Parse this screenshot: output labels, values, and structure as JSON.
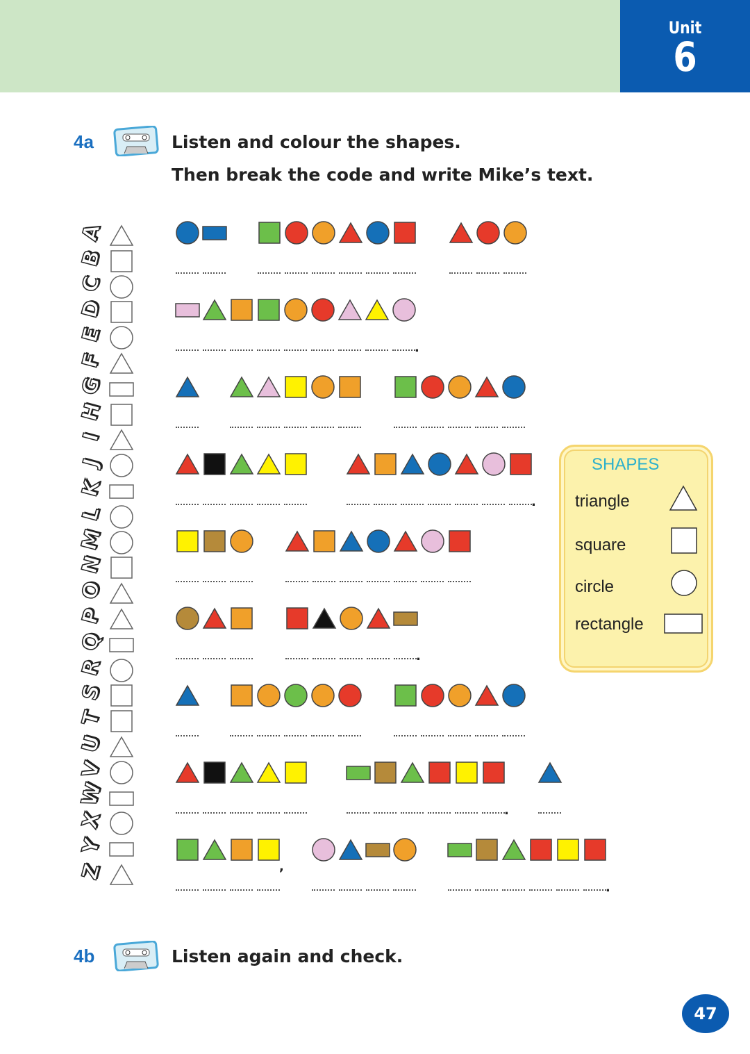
{
  "header": {
    "unit_label": "Unit",
    "unit_number": "6"
  },
  "exercise_4a": {
    "number": "4a",
    "line1": "Listen and colour the shapes.",
    "line2": "Then break the code and write Mike’s text.",
    "icon": "cassette-icon"
  },
  "exercise_4b": {
    "number": "4b",
    "line1": "Listen again and check.",
    "icon": "cassette-icon"
  },
  "code_key": [
    {
      "letter": "A",
      "shape": "triangle"
    },
    {
      "letter": "B",
      "shape": "square"
    },
    {
      "letter": "C",
      "shape": "circle"
    },
    {
      "letter": "D",
      "shape": "square"
    },
    {
      "letter": "E",
      "shape": "circle"
    },
    {
      "letter": "F",
      "shape": "triangle"
    },
    {
      "letter": "G",
      "shape": "rectangle"
    },
    {
      "letter": "H",
      "shape": "square"
    },
    {
      "letter": "I",
      "shape": "triangle"
    },
    {
      "letter": "J",
      "shape": "circle"
    },
    {
      "letter": "K",
      "shape": "rectangle"
    },
    {
      "letter": "L",
      "shape": "circle"
    },
    {
      "letter": "M",
      "shape": "circle"
    },
    {
      "letter": "N",
      "shape": "square"
    },
    {
      "letter": "O",
      "shape": "triangle"
    },
    {
      "letter": "P",
      "shape": "triangle"
    },
    {
      "letter": "Q",
      "shape": "rectangle"
    },
    {
      "letter": "R",
      "shape": "circle"
    },
    {
      "letter": "S",
      "shape": "square"
    },
    {
      "letter": "T",
      "shape": "square"
    },
    {
      "letter": "U",
      "shape": "triangle"
    },
    {
      "letter": "V",
      "shape": "circle"
    },
    {
      "letter": "W",
      "shape": "rectangle"
    },
    {
      "letter": "X",
      "shape": "circle"
    },
    {
      "letter": "Y",
      "shape": "rectangle"
    },
    {
      "letter": "Z",
      "shape": "triangle"
    }
  ],
  "colors": {
    "B": "#1570b8",
    "G": "#6cbf4a",
    "R": "#e63a2a",
    "O": "#f0a02a",
    "P": "#e8bfdc",
    "Y": "#fff200",
    "K": "#111111",
    "N": "#b58a3a"
  },
  "rows": [
    {
      "words": [
        [
          "c-B",
          "r-B"
        ],
        [
          "s-G",
          "c-R",
          "c-O",
          "t-R",
          "c-B",
          "s-R"
        ],
        [
          "t-R",
          "c-R",
          "c-O"
        ]
      ],
      "punct": []
    },
    {
      "words": [
        [
          "r-P",
          "t-G",
          "s-O",
          "s-G",
          "c-O",
          "c-R",
          "t-P",
          "t-Y",
          "c-P"
        ]
      ],
      "punct": [
        {
          "after": 0,
          "mark": "."
        }
      ]
    },
    {
      "words": [
        [
          "t-B"
        ],
        [
          "t-G",
          "t-P",
          "s-Y",
          "c-O",
          "s-O"
        ],
        [
          "s-G",
          "c-R",
          "c-O",
          "t-R",
          "c-B"
        ]
      ],
      "punct": []
    },
    {
      "words": [
        [
          "t-R",
          "s-K",
          "t-G",
          "t-Y",
          "s-Y"
        ],
        [
          "t-R",
          "s-O",
          "t-B",
          "c-B",
          "t-R",
          "c-P",
          "s-R"
        ]
      ],
      "punct": [
        {
          "after": 1,
          "mark": "."
        }
      ]
    },
    {
      "words": [
        [
          "s-Y",
          "s-N",
          "c-O"
        ],
        [
          "t-R",
          "s-O",
          "t-B",
          "c-B",
          "t-R",
          "c-P",
          "s-R"
        ]
      ],
      "punct": []
    },
    {
      "words": [
        [
          "c-N",
          "t-R",
          "s-O"
        ],
        [
          "s-R",
          "t-K",
          "c-O",
          "t-R",
          "r-N"
        ]
      ],
      "punct": [
        {
          "after": 1,
          "mark": "."
        }
      ]
    },
    {
      "words": [
        [
          "t-B"
        ],
        [
          "s-O",
          "c-O",
          "c-G",
          "c-O",
          "c-R"
        ],
        [
          "s-G",
          "c-R",
          "c-O",
          "t-R",
          "c-B"
        ]
      ],
      "punct": []
    },
    {
      "words": [
        [
          "t-R",
          "s-K",
          "t-G",
          "t-Y",
          "s-Y"
        ],
        [
          "r-G",
          "s-N",
          "t-G",
          "s-R",
          "s-Y",
          "s-R"
        ],
        [
          "t-B"
        ]
      ],
      "punct": [
        {
          "after": 1,
          "mark": "."
        }
      ]
    },
    {
      "words": [
        [
          "s-G",
          "t-G",
          "s-O",
          "s-Y"
        ],
        [
          "c-P",
          "t-B",
          "r-N",
          "c-O"
        ],
        [
          "r-G",
          "s-N",
          "t-G",
          "s-R",
          "s-Y",
          "s-R"
        ]
      ],
      "punct": [
        {
          "after": 0,
          "mark": ","
        },
        {
          "after": 2,
          "mark": "."
        }
      ]
    }
  ],
  "shapes_box": {
    "title": "SHAPES",
    "items": [
      {
        "label": "triangle",
        "shape": "triangle"
      },
      {
        "label": "square",
        "shape": "square"
      },
      {
        "label": "circle",
        "shape": "circle"
      },
      {
        "label": "rectangle",
        "shape": "rectangle"
      }
    ]
  },
  "page_number": "47"
}
